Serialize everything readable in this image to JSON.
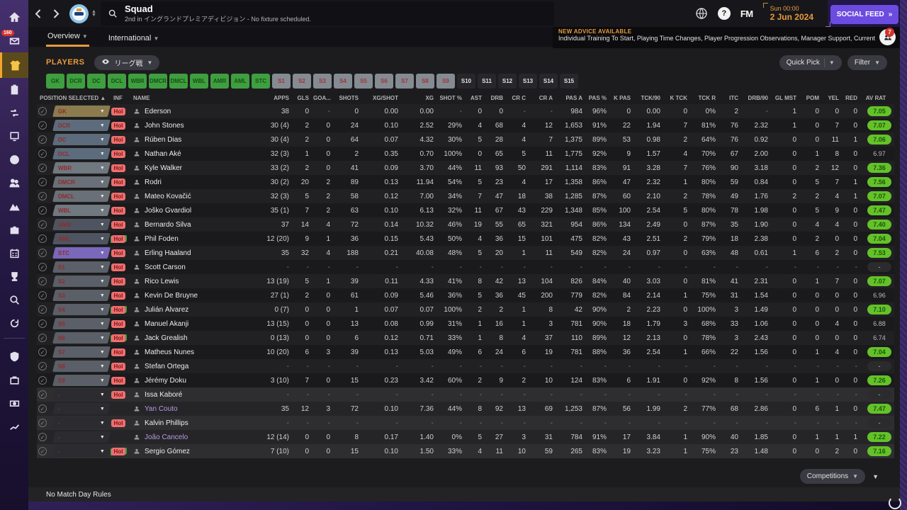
{
  "topbar": {
    "title": "Squad",
    "subtitle": "2nd in イングランドプレミアディビジョン - No fixture scheduled.",
    "time": "Sun 00:00",
    "date": "2 Jun 2024",
    "fm_logo": "FM",
    "help_label": "?",
    "social_feed": "SOCIAL FEED",
    "social_feed_arrows": "»"
  },
  "sidebar": {
    "inbox_badge": "160"
  },
  "tabs": [
    {
      "label": "Overview"
    },
    {
      "label": "International"
    }
  ],
  "advice": {
    "heading": "NEW ADVICE AVAILABLE",
    "text": "Individual Training To Start, Playing Time Changes, Player Progression Observations, Manager Support, Current Ability Changes",
    "badge": "7"
  },
  "players_bar": {
    "label": "PLAYERS",
    "view": "リーグ戦",
    "quick_pick": "Quick Pick",
    "filter": "Filter"
  },
  "position_buttons": {
    "starters": [
      "GK",
      "DCR",
      "DC",
      "DCL",
      "WBR",
      "DMCR",
      "DMCL",
      "WBL",
      "AMR",
      "AML",
      "STC"
    ],
    "subs": [
      "S1",
      "S2",
      "S3",
      "S4",
      "S5",
      "S6",
      "S7",
      "S8",
      "S9"
    ],
    "extra": [
      "S10",
      "S11",
      "S12",
      "S13",
      "S14",
      "S15"
    ]
  },
  "table": {
    "columns": [
      "POSITION SELECTED",
      "INF",
      "NAME",
      "APPS",
      "GLS",
      "GOA...",
      "SHOTS",
      "XG/SHOT",
      "XG",
      "SHOT %",
      "AST",
      "DRB",
      "CR C",
      "CR A",
      "PAS A",
      "PAS %",
      "K PAS",
      "TCK/90",
      "K TCK",
      "TCK R",
      "ITC",
      "DRB/90",
      "GL MST",
      "POM",
      "YEL",
      "RED",
      "AV RAT"
    ],
    "sort_arrow": "▲",
    "players": [
      {
        "pos": "GK",
        "pos_type": "gk",
        "inf": "Hol",
        "inf_accent": false,
        "name": "Ederson",
        "loan": false,
        "section": "main",
        "stats": [
          "38",
          "0",
          "-",
          "0",
          "0.00",
          "0.00",
          "-",
          "0",
          "0",
          "-",
          "-",
          "984",
          "96%",
          "0",
          "0.00",
          "0",
          "0%",
          "2",
          "-",
          "1",
          "0",
          "0",
          "0"
        ],
        "av_rat": "7.05",
        "rat_style": "green"
      },
      {
        "pos": "DCR",
        "pos_type": "def",
        "inf": "Hol",
        "inf_accent": false,
        "name": "John Stones",
        "loan": false,
        "section": "main",
        "stats": [
          "30 (4)",
          "2",
          "0",
          "24",
          "0.10",
          "2.52",
          "29%",
          "4",
          "68",
          "4",
          "12",
          "1,653",
          "91%",
          "22",
          "1.94",
          "7",
          "81%",
          "76",
          "2.32",
          "1",
          "0",
          "7",
          "0"
        ],
        "av_rat": "7.07",
        "rat_style": "green"
      },
      {
        "pos": "DC",
        "pos_type": "def",
        "inf": "Hol",
        "inf_accent": false,
        "name": "Rúben Dias",
        "loan": false,
        "section": "main",
        "stats": [
          "30 (4)",
          "2",
          "0",
          "64",
          "0.07",
          "4.32",
          "30%",
          "5",
          "28",
          "4",
          "7",
          "1,375",
          "89%",
          "53",
          "0.98",
          "2",
          "64%",
          "76",
          "0.92",
          "0",
          "0",
          "11",
          "1"
        ],
        "av_rat": "7.06",
        "rat_style": "green"
      },
      {
        "pos": "DCL",
        "pos_type": "def",
        "inf": "Hol",
        "inf_accent": false,
        "name": "Nathan Aké",
        "loan": false,
        "section": "main",
        "stats": [
          "32 (3)",
          "1",
          "0",
          "2",
          "0.35",
          "0.70",
          "100%",
          "0",
          "65",
          "5",
          "11",
          "1,775",
          "92%",
          "9",
          "1.57",
          "4",
          "70%",
          "67",
          "2.00",
          "0",
          "1",
          "8",
          "0"
        ],
        "av_rat": "6.97",
        "rat_style": "plain"
      },
      {
        "pos": "WBR",
        "pos_type": "wb",
        "inf": "Hol",
        "inf_accent": false,
        "name": "Kyle Walker",
        "loan": false,
        "section": "main",
        "stats": [
          "33 (2)",
          "2",
          "0",
          "41",
          "0.09",
          "3.70",
          "44%",
          "11",
          "93",
          "50",
          "291",
          "1,114",
          "83%",
          "91",
          "3.28",
          "7",
          "76%",
          "90",
          "3.18",
          "0",
          "2",
          "12",
          "0"
        ],
        "av_rat": "7.36",
        "rat_style": "green"
      },
      {
        "pos": "DMCR",
        "pos_type": "dm",
        "inf": "Hol",
        "inf_accent": false,
        "name": "Rodri",
        "loan": false,
        "section": "main",
        "stats": [
          "30 (2)",
          "20",
          "2",
          "89",
          "0.13",
          "11.94",
          "54%",
          "5",
          "23",
          "4",
          "17",
          "1,358",
          "86%",
          "47",
          "2.32",
          "1",
          "80%",
          "59",
          "0.84",
          "0",
          "5",
          "7",
          "1"
        ],
        "av_rat": "7.56",
        "rat_style": "green"
      },
      {
        "pos": "DMCL",
        "pos_type": "dm",
        "inf": "Hol",
        "inf_accent": false,
        "name": "Mateo Kovačić",
        "loan": false,
        "section": "main",
        "stats": [
          "32 (3)",
          "5",
          "2",
          "58",
          "0.12",
          "7.00",
          "34%",
          "7",
          "47",
          "18",
          "38",
          "1,285",
          "87%",
          "60",
          "2.10",
          "2",
          "78%",
          "49",
          "1.76",
          "2",
          "2",
          "4",
          "1"
        ],
        "av_rat": "7.07",
        "rat_style": "green"
      },
      {
        "pos": "WBL",
        "pos_type": "wb",
        "inf": "Hol",
        "inf_accent": false,
        "name": "Joško Gvardiol",
        "loan": false,
        "section": "main",
        "stats": [
          "35 (1)",
          "7",
          "2",
          "63",
          "0.10",
          "6.13",
          "32%",
          "11",
          "67",
          "43",
          "229",
          "1,348",
          "85%",
          "100",
          "2.54",
          "5",
          "80%",
          "78",
          "1.98",
          "0",
          "5",
          "9",
          "0"
        ],
        "av_rat": "7.47",
        "rat_style": "green"
      },
      {
        "pos": "AMR",
        "pos_type": "am",
        "inf": "Hol",
        "inf_accent": false,
        "name": "Bernardo Silva",
        "loan": false,
        "section": "main",
        "stats": [
          "37",
          "14",
          "4",
          "72",
          "0.14",
          "10.32",
          "46%",
          "19",
          "55",
          "65",
          "321",
          "954",
          "86%",
          "134",
          "2.49",
          "0",
          "87%",
          "35",
          "1.90",
          "0",
          "4",
          "4",
          "0"
        ],
        "av_rat": "7.40",
        "rat_style": "green"
      },
      {
        "pos": "AML",
        "pos_type": "am",
        "inf": "Hol",
        "inf_accent": true,
        "name": "Phil Foden",
        "loan": false,
        "section": "main",
        "stats": [
          "12 (20)",
          "9",
          "1",
          "36",
          "0.15",
          "5.43",
          "50%",
          "4",
          "36",
          "15",
          "101",
          "475",
          "82%",
          "43",
          "2.51",
          "2",
          "79%",
          "18",
          "2.38",
          "0",
          "2",
          "0",
          "0"
        ],
        "av_rat": "7.04",
        "rat_style": "green"
      },
      {
        "pos": "STC",
        "pos_type": "st",
        "inf": "Hol",
        "inf_accent": false,
        "name": "Erling Haaland",
        "loan": false,
        "section": "main",
        "stats": [
          "35",
          "32",
          "4",
          "188",
          "0.21",
          "40.08",
          "48%",
          "5",
          "20",
          "1",
          "11",
          "549",
          "82%",
          "24",
          "0.97",
          "0",
          "63%",
          "48",
          "0.61",
          "1",
          "6",
          "2",
          "0"
        ],
        "av_rat": "7.53",
        "rat_style": "green"
      },
      {
        "pos": "S1",
        "pos_type": "sub",
        "inf": "Hol",
        "inf_accent": false,
        "name": "Scott Carson",
        "loan": false,
        "section": "main",
        "stats": [
          "-",
          "-",
          "-",
          "-",
          "-",
          "-",
          "-",
          "-",
          "-",
          "-",
          "-",
          "-",
          "-",
          "-",
          "-",
          "-",
          "-",
          "-",
          "-",
          "-",
          "-",
          "-",
          "-"
        ],
        "av_rat": "-",
        "rat_style": "dash"
      },
      {
        "pos": "S2",
        "pos_type": "sub",
        "inf": "Hol",
        "inf_accent": false,
        "name": "Rico Lewis",
        "loan": false,
        "section": "main",
        "stats": [
          "13 (19)",
          "5",
          "1",
          "39",
          "0.11",
          "4.33",
          "41%",
          "8",
          "42",
          "13",
          "104",
          "826",
          "84%",
          "40",
          "3.03",
          "0",
          "81%",
          "41",
          "2.31",
          "0",
          "1",
          "7",
          "0"
        ],
        "av_rat": "7.07",
        "rat_style": "green"
      },
      {
        "pos": "S3",
        "pos_type": "sub",
        "inf": "Hol",
        "inf_accent": false,
        "name": "Kevin De Bruyne",
        "loan": false,
        "section": "main",
        "stats": [
          "27 (1)",
          "2",
          "0",
          "61",
          "0.09",
          "5.46",
          "36%",
          "5",
          "36",
          "45",
          "200",
          "779",
          "82%",
          "84",
          "2.14",
          "1",
          "75%",
          "31",
          "1.54",
          "0",
          "0",
          "0",
          "0"
        ],
        "av_rat": "6.96",
        "rat_style": "plain"
      },
      {
        "pos": "S4",
        "pos_type": "sub",
        "inf": "Hol",
        "inf_accent": true,
        "name": "Julián Álvarez",
        "loan": false,
        "section": "main",
        "stats": [
          "0 (7)",
          "0",
          "0",
          "1",
          "0.07",
          "0.07",
          "100%",
          "2",
          "2",
          "1",
          "8",
          "42",
          "90%",
          "2",
          "2.23",
          "0",
          "100%",
          "3",
          "1.49",
          "0",
          "0",
          "0",
          "0"
        ],
        "av_rat": "7.10",
        "rat_style": "green"
      },
      {
        "pos": "S5",
        "pos_type": "sub",
        "inf": "Hol",
        "inf_accent": false,
        "name": "Manuel Akanji",
        "loan": false,
        "section": "main",
        "stats": [
          "13 (15)",
          "0",
          "0",
          "13",
          "0.08",
          "0.99",
          "31%",
          "1",
          "16",
          "1",
          "3",
          "781",
          "90%",
          "18",
          "1.79",
          "3",
          "68%",
          "33",
          "1.06",
          "0",
          "0",
          "4",
          "0"
        ],
        "av_rat": "6.88",
        "rat_style": "plain"
      },
      {
        "pos": "S6",
        "pos_type": "sub",
        "inf": "Hol",
        "inf_accent": true,
        "name": "Jack Grealish",
        "loan": false,
        "section": "main",
        "stats": [
          "0 (13)",
          "0",
          "0",
          "6",
          "0.12",
          "0.71",
          "33%",
          "1",
          "8",
          "4",
          "37",
          "110",
          "89%",
          "12",
          "2.13",
          "0",
          "78%",
          "3",
          "2.43",
          "0",
          "0",
          "0",
          "0"
        ],
        "av_rat": "6.74",
        "rat_style": "plain"
      },
      {
        "pos": "S7",
        "pos_type": "sub",
        "inf": "Hol",
        "inf_accent": false,
        "name": "Matheus Nunes",
        "loan": false,
        "section": "main",
        "stats": [
          "10 (20)",
          "6",
          "3",
          "39",
          "0.13",
          "5.03",
          "49%",
          "6",
          "24",
          "6",
          "19",
          "781",
          "88%",
          "36",
          "2.54",
          "1",
          "66%",
          "22",
          "1.56",
          "0",
          "1",
          "4",
          "0"
        ],
        "av_rat": "7.04",
        "rat_style": "green"
      },
      {
        "pos": "S8",
        "pos_type": "sub",
        "inf": "Hol",
        "inf_accent": false,
        "name": "Stefan Ortega",
        "loan": false,
        "section": "main",
        "stats": [
          "-",
          "-",
          "-",
          "-",
          "-",
          "-",
          "-",
          "-",
          "-",
          "-",
          "-",
          "-",
          "-",
          "-",
          "-",
          "-",
          "-",
          "-",
          "-",
          "-",
          "-",
          "-",
          "-"
        ],
        "av_rat": "-",
        "rat_style": "dash"
      },
      {
        "pos": "S9",
        "pos_type": "sub",
        "inf": "Hol",
        "inf_accent": false,
        "name": "Jérémy Doku",
        "loan": false,
        "section": "main",
        "stats": [
          "3 (10)",
          "7",
          "0",
          "15",
          "0.23",
          "3.42",
          "60%",
          "2",
          "9",
          "2",
          "10",
          "124",
          "83%",
          "6",
          "1.91",
          "0",
          "92%",
          "8",
          "1.56",
          "0",
          "1",
          "0",
          "0"
        ],
        "av_rat": "7.26",
        "rat_style": "green"
      },
      {
        "pos": "-",
        "pos_type": "none",
        "inf": "Hol",
        "inf_accent": false,
        "name": "Issa Kaboré",
        "loan": false,
        "section": "other",
        "stats": [
          "-",
          "-",
          "-",
          "-",
          "-",
          "-",
          "-",
          "-",
          "-",
          "-",
          "-",
          "-",
          "-",
          "-",
          "-",
          "-",
          "-",
          "-",
          "-",
          "-",
          "-",
          "-",
          "-"
        ],
        "av_rat": "-",
        "rat_style": "dash"
      },
      {
        "pos": "-",
        "pos_type": "none",
        "inf": "",
        "inf_accent": false,
        "name": "Yan Couto",
        "loan": true,
        "section": "other",
        "stats": [
          "35",
          "12",
          "3",
          "72",
          "0.10",
          "7.36",
          "44%",
          "8",
          "92",
          "13",
          "69",
          "1,253",
          "87%",
          "56",
          "1.99",
          "2",
          "77%",
          "68",
          "2.86",
          "0",
          "6",
          "1",
          "0"
        ],
        "av_rat": "7.47",
        "rat_style": "green"
      },
      {
        "pos": "-",
        "pos_type": "none",
        "inf": "Hol",
        "inf_accent": false,
        "name": "Kalvin Phillips",
        "loan": false,
        "section": "other",
        "stats": [
          "-",
          "-",
          "-",
          "-",
          "-",
          "-",
          "-",
          "-",
          "-",
          "-",
          "-",
          "-",
          "-",
          "-",
          "-",
          "-",
          "-",
          "-",
          "-",
          "-",
          "-",
          "-",
          "-"
        ],
        "av_rat": "-",
        "rat_style": "dash"
      },
      {
        "pos": "-",
        "pos_type": "none",
        "inf": "",
        "inf_accent": false,
        "name": "João Cancelo",
        "loan": true,
        "section": "other",
        "stats": [
          "12 (14)",
          "0",
          "0",
          "8",
          "0.17",
          "1.40",
          "0%",
          "5",
          "27",
          "3",
          "31",
          "784",
          "91%",
          "17",
          "3.84",
          "1",
          "90%",
          "40",
          "1.85",
          "0",
          "1",
          "1",
          "1"
        ],
        "av_rat": "7.22",
        "rat_style": "green"
      },
      {
        "pos": "-",
        "pos_type": "none",
        "inf": "Hol",
        "inf_accent": true,
        "name": "Sergio Gómez",
        "loan": false,
        "section": "other",
        "stats": [
          "7 (10)",
          "0",
          "0",
          "15",
          "0.10",
          "1.50",
          "33%",
          "4",
          "11",
          "10",
          "59",
          "265",
          "83%",
          "19",
          "3.23",
          "1",
          "75%",
          "23",
          "1.48",
          "0",
          "0",
          "2",
          "0"
        ],
        "av_rat": "7.16",
        "rat_style": "green"
      }
    ]
  },
  "footer": {
    "note": "No Match Day Rules",
    "competitions": "Competitions"
  },
  "colors": {
    "accent_orange": "#e89a3c",
    "social_purple": "#6c4be0",
    "rating_green": "#63c229",
    "hol_red": "#ee6f6f",
    "starter_button_green": "#3f9e3f"
  }
}
